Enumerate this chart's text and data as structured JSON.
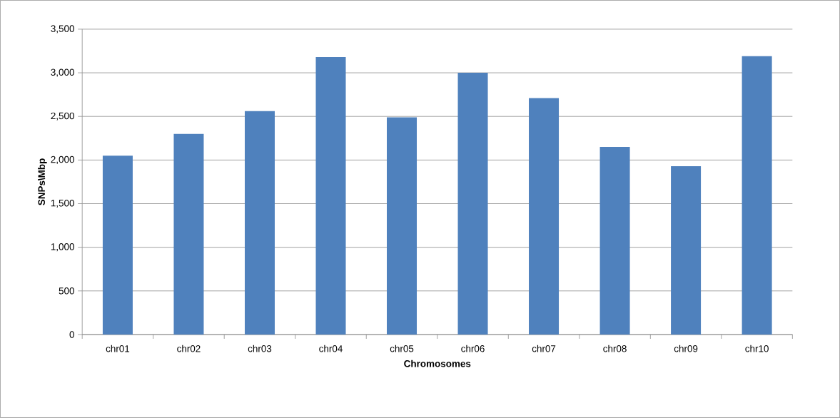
{
  "chart_data": {
    "type": "bar",
    "xlabel": "Chromosomes",
    "ylabel": "SNPs\\Mbp",
    "categories": [
      "chr01",
      "chr02",
      "chr03",
      "chr04",
      "chr05",
      "chr06",
      "chr07",
      "chr08",
      "chr09",
      "chr10"
    ],
    "values": [
      2050,
      2300,
      2560,
      3180,
      2490,
      3000,
      2710,
      2150,
      1930,
      3190
    ],
    "color": "#4f81bd",
    "ylim": [
      0,
      3500
    ],
    "yticks": [
      0,
      500,
      {
        "value": 1000,
        "label": "1,000"
      },
      {
        "value": 1500,
        "label": "1,500"
      },
      {
        "value": 2000,
        "label": "2,000"
      },
      {
        "value": 2500,
        "label": "2,500"
      },
      {
        "value": 3000,
        "label": "3,000"
      },
      {
        "value": 3500,
        "label": "3,500"
      }
    ],
    "grid": "y"
  }
}
